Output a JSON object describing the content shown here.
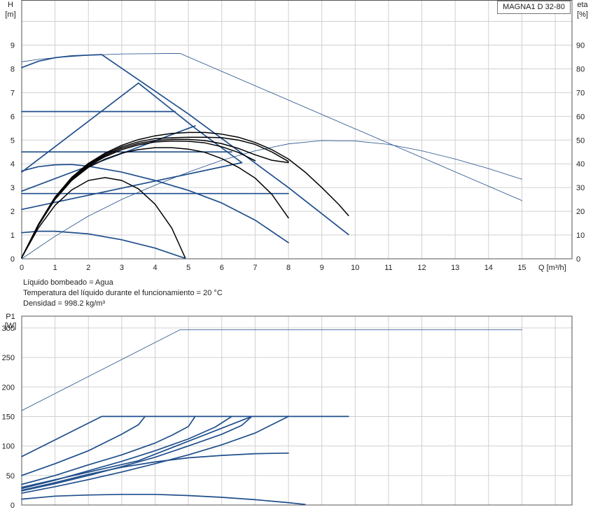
{
  "model": "MAGNA1 D 32-80",
  "info_lines": [
    "Líquido bombeado = Agua",
    "Temperatura del líquido durante el funcionamiento = 20 °C",
    "Densidad = 998.2 kg/m³"
  ],
  "colors": {
    "blue": "#1f4e8c",
    "black": "#000000",
    "grid": "#d0d0d0",
    "axis": "#555555"
  },
  "chart_data": [
    {
      "type": "line",
      "name": "QH",
      "ylabel_lines": [
        "H",
        "[m]"
      ],
      "y2label_lines": [
        "eta",
        "[%]"
      ],
      "xlabel": "Q [m³/h]",
      "xlim": [
        0,
        15
      ],
      "ylim": [
        0,
        9
      ],
      "y2lim": [
        0,
        90
      ],
      "xticks": [
        0,
        1,
        2,
        3,
        4,
        5,
        6,
        7,
        8,
        9,
        10,
        11,
        12,
        13,
        14,
        15
      ],
      "yticks": [
        0,
        1,
        2,
        3,
        4,
        5,
        6,
        7,
        8,
        9
      ],
      "y2ticks": [
        0,
        10,
        20,
        30,
        40,
        50,
        60,
        70,
        80,
        90
      ],
      "grid": true,
      "series": [
        {
          "style": "blue",
          "points": [
            [
              0,
              8.05
            ],
            [
              0.5,
              8.32
            ],
            [
              1,
              8.47
            ],
            [
              1.5,
              8.55
            ],
            [
              2,
              8.58
            ],
            [
              2.4,
              8.6
            ]
          ]
        },
        {
          "style": "blue",
          "points": [
            [
              2.4,
              8.6
            ],
            [
              5,
              6.1
            ],
            [
              8,
              3.0
            ],
            [
              9.8,
              1.02
            ]
          ]
        },
        {
          "style": "blue",
          "points": [
            [
              0,
              6.2
            ],
            [
              4.6,
              6.2
            ]
          ]
        },
        {
          "style": "blue",
          "points": [
            [
              0,
              3.65
            ],
            [
              3.5,
              7.4
            ],
            [
              5.2,
              5.5
            ],
            [
              6.6,
              4.05
            ]
          ]
        },
        {
          "style": "blue",
          "points": [
            [
              0,
              4.5
            ],
            [
              6.3,
              4.5
            ]
          ]
        },
        {
          "style": "blue",
          "points": [
            [
              0,
              2.75
            ],
            [
              8,
              2.75
            ]
          ]
        },
        {
          "style": "blue",
          "points": [
            [
              0,
              3.7
            ],
            [
              0.5,
              3.88
            ],
            [
              1,
              3.96
            ],
            [
              1.5,
              3.97
            ],
            [
              2,
              3.9
            ],
            [
              3,
              3.65
            ],
            [
              4,
              3.3
            ],
            [
              5,
              2.88
            ],
            [
              6,
              2.35
            ],
            [
              7,
              1.63
            ],
            [
              8,
              0.68
            ]
          ]
        },
        {
          "style": "blue",
          "points": [
            [
              0,
              2.85
            ],
            [
              5.2,
              5.6
            ]
          ]
        },
        {
          "style": "blue",
          "points": [
            [
              0,
              2.08
            ],
            [
              6.6,
              4.05
            ]
          ]
        },
        {
          "style": "blue",
          "points": [
            [
              0,
              1.1
            ],
            [
              0.5,
              1.16
            ],
            [
              1,
              1.16
            ],
            [
              2,
              1.05
            ],
            [
              3,
              0.8
            ],
            [
              4,
              0.45
            ],
            [
              4.9,
              0.02
            ]
          ]
        },
        {
          "style": "thin",
          "points": [
            [
              0,
              8.3
            ],
            [
              0.5,
              8.4
            ],
            [
              1,
              8.47
            ],
            [
              2,
              8.57
            ],
            [
              3,
              8.63
            ],
            [
              4.75,
              8.65
            ],
            [
              8.8,
              6.2
            ],
            [
              15,
              2.45
            ]
          ]
        },
        {
          "style": "thin",
          "points": [
            [
              0,
              0
            ],
            [
              1,
              0.95
            ],
            [
              2,
              1.8
            ],
            [
              3,
              2.5
            ],
            [
              4,
              3.1
            ],
            [
              5,
              3.65
            ],
            [
              6,
              4.15
            ],
            [
              7,
              4.55
            ],
            [
              8,
              4.84
            ],
            [
              9,
              4.98
            ],
            [
              10,
              4.96
            ],
            [
              11,
              4.82
            ],
            [
              12,
              4.55
            ],
            [
              13,
              4.2
            ],
            [
              14,
              3.8
            ],
            [
              15,
              3.35
            ]
          ]
        },
        {
          "style": "black",
          "points": [
            [
              0,
              0.05
            ],
            [
              0.5,
              1.3
            ],
            [
              1,
              2.25
            ],
            [
              1.5,
              2.9
            ],
            [
              2,
              3.3
            ],
            [
              2.5,
              3.42
            ],
            [
              3,
              3.3
            ],
            [
              3.5,
              2.95
            ],
            [
              4,
              2.3
            ],
            [
              4.5,
              1.3
            ],
            [
              4.9,
              0.05
            ]
          ]
        },
        {
          "style": "black",
          "points": [
            [
              0,
              0.05
            ],
            [
              0.5,
              1.4
            ],
            [
              1,
              2.5
            ],
            [
              1.5,
              3.3
            ],
            [
              2,
              3.85
            ],
            [
              2.5,
              4.2
            ],
            [
              3,
              4.45
            ],
            [
              3.5,
              4.6
            ],
            [
              4,
              4.68
            ],
            [
              4.5,
              4.68
            ],
            [
              5,
              4.62
            ],
            [
              5.5,
              4.48
            ],
            [
              6,
              4.22
            ],
            [
              6.5,
              3.85
            ],
            [
              7,
              3.4
            ],
            [
              7.5,
              2.72
            ],
            [
              8,
              1.72
            ]
          ]
        },
        {
          "style": "black",
          "points": [
            [
              0,
              0.05
            ],
            [
              0.5,
              1.42
            ],
            [
              1,
              2.55
            ],
            [
              1.5,
              3.35
            ],
            [
              2,
              3.9
            ],
            [
              2.5,
              4.3
            ],
            [
              3,
              4.6
            ],
            [
              3.5,
              4.8
            ],
            [
              4,
              4.92
            ],
            [
              4.5,
              4.96
            ],
            [
              5,
              4.95
            ],
            [
              5.5,
              4.88
            ],
            [
              6,
              4.72
            ],
            [
              6.5,
              4.48
            ],
            [
              7,
              4.13
            ]
          ]
        },
        {
          "style": "black",
          "points": [
            [
              0,
              0.05
            ],
            [
              0.5,
              1.43
            ],
            [
              1,
              2.57
            ],
            [
              1.5,
              3.38
            ],
            [
              2,
              3.95
            ],
            [
              2.5,
              4.35
            ],
            [
              3,
              4.66
            ],
            [
              3.5,
              4.86
            ],
            [
              4,
              4.98
            ],
            [
              4.5,
              5.03
            ],
            [
              5,
              5.03
            ],
            [
              5.5,
              4.98
            ],
            [
              6,
              4.85
            ],
            [
              6.5,
              4.65
            ],
            [
              7,
              4.38
            ],
            [
              7.5,
              4.15
            ],
            [
              8,
              4.05
            ]
          ]
        },
        {
          "style": "black",
          "points": [
            [
              0,
              0.05
            ],
            [
              0.5,
              1.44
            ],
            [
              1,
              2.58
            ],
            [
              1.5,
              3.4
            ],
            [
              2,
              3.98
            ],
            [
              2.5,
              4.4
            ],
            [
              3,
              4.72
            ],
            [
              3.5,
              4.93
            ],
            [
              4,
              5.06
            ],
            [
              4.5,
              5.1
            ],
            [
              5,
              5.12
            ],
            [
              5.5,
              5.12
            ],
            [
              6,
              5.1
            ],
            [
              6.5,
              5.0
            ],
            [
              7,
              4.82
            ],
            [
              7.5,
              4.5
            ],
            [
              8,
              4.1
            ]
          ]
        },
        {
          "style": "black",
          "points": [
            [
              0,
              0.05
            ],
            [
              0.5,
              1.45
            ],
            [
              1,
              2.6
            ],
            [
              1.5,
              3.43
            ],
            [
              2,
              4.02
            ],
            [
              2.5,
              4.45
            ],
            [
              3,
              4.78
            ],
            [
              3.5,
              5.02
            ],
            [
              4,
              5.18
            ],
            [
              4.5,
              5.28
            ],
            [
              5,
              5.32
            ],
            [
              5.5,
              5.32
            ],
            [
              6,
              5.25
            ],
            [
              6.5,
              5.12
            ],
            [
              7,
              4.9
            ],
            [
              7.5,
              4.6
            ],
            [
              8,
              4.2
            ],
            [
              8.5,
              3.65
            ],
            [
              9,
              3.0
            ],
            [
              9.5,
              2.3
            ],
            [
              9.8,
              1.82
            ]
          ]
        }
      ]
    },
    {
      "type": "line",
      "name": "P1",
      "ylabel_lines": [
        "P1",
        "[W]"
      ],
      "xlim": [
        0,
        15
      ],
      "ylim": [
        0,
        320
      ],
      "yticks": [
        0,
        50,
        100,
        150,
        200,
        250,
        300
      ],
      "grid": true,
      "series": [
        {
          "style": "thin",
          "points": [
            [
              0,
              160
            ],
            [
              4.75,
              297
            ],
            [
              15,
              297
            ]
          ]
        },
        {
          "style": "blue",
          "points": [
            [
              0,
              82
            ],
            [
              2.4,
              150
            ],
            [
              9.8,
              150
            ]
          ]
        },
        {
          "style": "blue",
          "points": [
            [
              0,
              50
            ],
            [
              1,
              70
            ],
            [
              2,
              92
            ],
            [
              3,
              120
            ],
            [
              3.5,
              136
            ],
            [
              3.7,
              150
            ]
          ]
        },
        {
          "style": "blue",
          "points": [
            [
              0,
              35
            ],
            [
              1,
              50
            ],
            [
              2,
              68
            ],
            [
              3,
              85
            ],
            [
              4,
              105
            ],
            [
              4.5,
              118
            ],
            [
              5,
              133
            ],
            [
              5.2,
              150
            ]
          ]
        },
        {
          "style": "blue",
          "points": [
            [
              0,
              28
            ],
            [
              1,
              42
            ],
            [
              2,
              58
            ],
            [
              3,
              74
            ],
            [
              4,
              92
            ],
            [
              5,
              112
            ],
            [
              5.8,
              132
            ],
            [
              6.3,
              150
            ]
          ]
        },
        {
          "style": "blue",
          "points": [
            [
              0,
              24
            ],
            [
              1,
              36
            ],
            [
              2,
              50
            ],
            [
              3,
              65
            ],
            [
              4,
              81
            ],
            [
              5,
              100
            ],
            [
              6,
              120
            ],
            [
              6.6,
              135
            ],
            [
              6.9,
              150
            ]
          ]
        },
        {
          "style": "blue",
          "points": [
            [
              0,
              20
            ],
            [
              1,
              31
            ],
            [
              2,
              43
            ],
            [
              3,
              56
            ],
            [
              4,
              70
            ],
            [
              5,
              85
            ],
            [
              6,
              102
            ],
            [
              7,
              122
            ],
            [
              8,
              150
            ]
          ]
        },
        {
          "style": "blue",
          "points": [
            [
              0,
              25
            ],
            [
              1,
              38
            ],
            [
              2,
              52
            ],
            [
              3,
              64
            ],
            [
              4,
              73
            ],
            [
              5,
              80
            ],
            [
              6,
              84
            ],
            [
              7,
              87
            ],
            [
              8,
              88
            ]
          ]
        },
        {
          "style": "blue",
          "points": [
            [
              0,
              10
            ],
            [
              1,
              15
            ],
            [
              2,
              17
            ],
            [
              3,
              18
            ],
            [
              4,
              18
            ],
            [
              5,
              16
            ],
            [
              6,
              13
            ],
            [
              7,
              9
            ],
            [
              8,
              4
            ],
            [
              8.5,
              1
            ]
          ]
        },
        {
          "style": "blue",
          "points": [
            [
              0,
              30
            ],
            [
              3.5,
              75
            ],
            [
              6.9,
              150
            ]
          ]
        }
      ]
    }
  ]
}
